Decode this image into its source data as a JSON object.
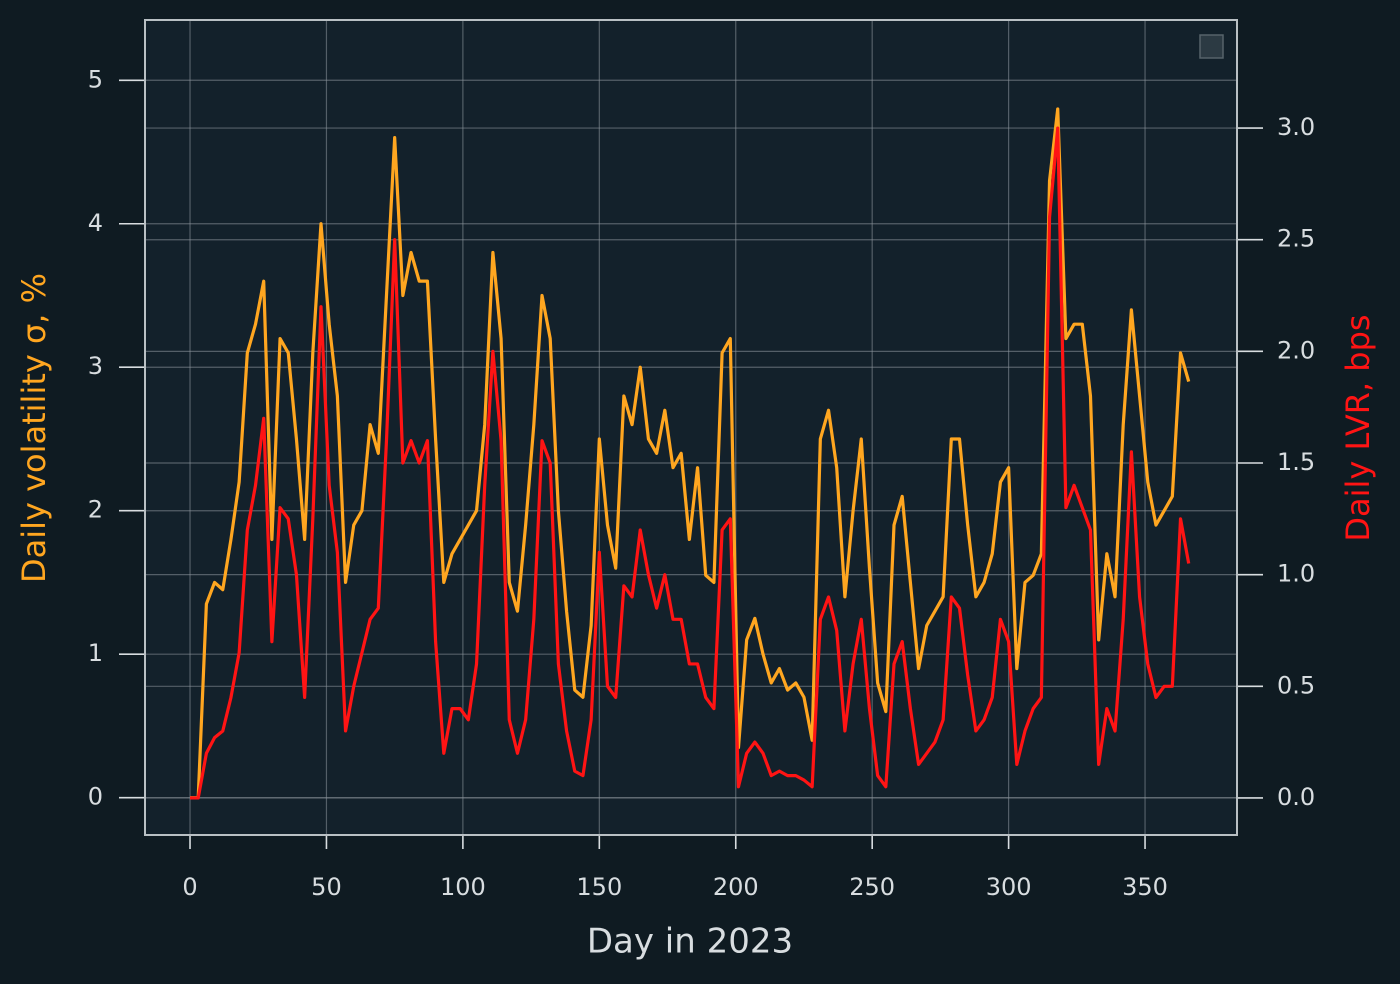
{
  "chart_data": {
    "type": "line",
    "xlabel": "Day in 2023",
    "ylabel": "Daily volatility σ, %",
    "y2label": "Daily LVR, bps",
    "x": [
      0,
      3,
      6,
      9,
      12,
      15,
      18,
      21,
      24,
      27,
      30,
      33,
      36,
      39,
      42,
      45,
      48,
      51,
      54,
      57,
      60,
      63,
      66,
      69,
      72,
      75,
      78,
      81,
      84,
      87,
      90,
      93,
      96,
      99,
      102,
      105,
      108,
      111,
      114,
      117,
      120,
      123,
      126,
      129,
      132,
      135,
      138,
      141,
      144,
      147,
      150,
      153,
      156,
      159,
      162,
      165,
      168,
      171,
      174,
      177,
      180,
      183,
      186,
      189,
      192,
      195,
      198,
      201,
      204,
      207,
      210,
      213,
      216,
      219,
      222,
      225,
      228,
      231,
      234,
      237,
      240,
      243,
      246,
      249,
      252,
      255,
      258,
      261,
      264,
      267,
      270,
      273,
      276,
      279,
      282,
      285,
      288,
      291,
      294,
      297,
      300,
      303,
      306,
      309,
      312,
      315,
      318,
      321,
      324,
      327,
      330,
      333,
      336,
      339,
      342,
      345,
      348,
      351,
      354,
      357,
      360,
      363,
      366
    ],
    "series": [
      {
        "color": "#ffa620",
        "values": [
          0,
          0,
          1.35,
          1.5,
          1.45,
          1.8,
          2.2,
          3.1,
          3.3,
          3.6,
          1.8,
          3.2,
          3.1,
          2.5,
          1.8,
          3.1,
          4.0,
          3.3,
          2.8,
          1.5,
          1.9,
          2.0,
          2.6,
          2.4,
          3.5,
          4.6,
          3.5,
          3.8,
          3.6,
          3.6,
          2.5,
          1.5,
          1.7,
          1.8,
          1.9,
          2.0,
          2.6,
          3.8,
          3.2,
          1.5,
          1.3,
          1.9,
          2.6,
          3.5,
          3.2,
          2.0,
          1.3,
          0.75,
          0.7,
          1.2,
          2.5,
          1.9,
          1.6,
          2.8,
          2.6,
          3.0,
          2.5,
          2.4,
          2.7,
          2.3,
          2.4,
          1.8,
          2.3,
          1.55,
          1.5,
          3.1,
          3.2,
          0.35,
          1.1,
          1.25,
          1.0,
          0.8,
          0.9,
          0.75,
          0.8,
          0.7,
          0.4,
          2.5,
          2.7,
          2.3,
          1.4,
          2.0,
          2.5,
          1.6,
          0.8,
          0.6,
          1.9,
          2.1,
          1.5,
          0.9,
          1.2,
          1.3,
          1.4,
          2.5,
          2.5,
          1.9,
          1.4,
          1.5,
          1.7,
          2.2,
          2.3,
          0.9,
          1.5,
          1.55,
          1.7,
          4.3,
          4.8,
          3.2,
          3.3,
          3.3,
          2.8,
          1.1,
          1.7,
          1.4,
          2.6,
          3.4,
          2.8,
          2.2,
          1.9,
          2.0,
          2.1,
          3.1,
          2.9
        ]
      },
      {
        "color": "#ff1414",
        "axis": "y2",
        "values": [
          0,
          0,
          0.2,
          0.27,
          0.3,
          0.45,
          0.65,
          1.2,
          1.4,
          1.7,
          0.7,
          1.3,
          1.25,
          1.0,
          0.45,
          1.25,
          2.2,
          1.4,
          1.1,
          0.3,
          0.5,
          0.65,
          0.8,
          0.85,
          1.6,
          2.5,
          1.5,
          1.6,
          1.5,
          1.6,
          0.7,
          0.2,
          0.4,
          0.4,
          0.35,
          0.6,
          1.4,
          2.0,
          1.6,
          0.35,
          0.2,
          0.35,
          0.8,
          1.6,
          1.5,
          0.6,
          0.3,
          0.12,
          0.1,
          0.35,
          1.1,
          0.5,
          0.45,
          0.95,
          0.9,
          1.2,
          1.0,
          0.85,
          1.0,
          0.8,
          0.8,
          0.6,
          0.6,
          0.45,
          0.4,
          1.2,
          1.25,
          0.05,
          0.2,
          0.25,
          0.2,
          0.1,
          0.12,
          0.1,
          0.1,
          0.08,
          0.05,
          0.8,
          0.9,
          0.75,
          0.3,
          0.6,
          0.8,
          0.4,
          0.1,
          0.05,
          0.6,
          0.7,
          0.4,
          0.15,
          0.2,
          0.25,
          0.35,
          0.9,
          0.85,
          0.55,
          0.3,
          0.35,
          0.45,
          0.8,
          0.7,
          0.15,
          0.3,
          0.4,
          0.45,
          2.6,
          3.0,
          1.3,
          1.4,
          1.3,
          1.2,
          0.15,
          0.4,
          0.3,
          0.8,
          1.55,
          0.9,
          0.6,
          0.45,
          0.5,
          0.5,
          1.25,
          1.05
        ]
      }
    ],
    "xlim": [
      -16.5,
      383.7
    ],
    "xticks": [
      0,
      50,
      100,
      150,
      200,
      250,
      300,
      350
    ],
    "ylim": [
      -0.26,
      5.42
    ],
    "yticks": [
      0,
      1,
      2,
      3,
      4,
      5
    ],
    "y2lim": [
      -0.166,
      3.484
    ],
    "y2ticks": [
      {
        "value": 0,
        "label": "0.0"
      },
      {
        "value": 0.5,
        "label": "0.5"
      },
      {
        "value": 1,
        "label": "1.0"
      },
      {
        "value": 1.5,
        "label": "1.5"
      },
      {
        "value": 2,
        "label": "2.0"
      },
      {
        "value": 2.5,
        "label": "2.5"
      },
      {
        "value": 3,
        "label": "3.0"
      }
    ],
    "grid": true
  }
}
